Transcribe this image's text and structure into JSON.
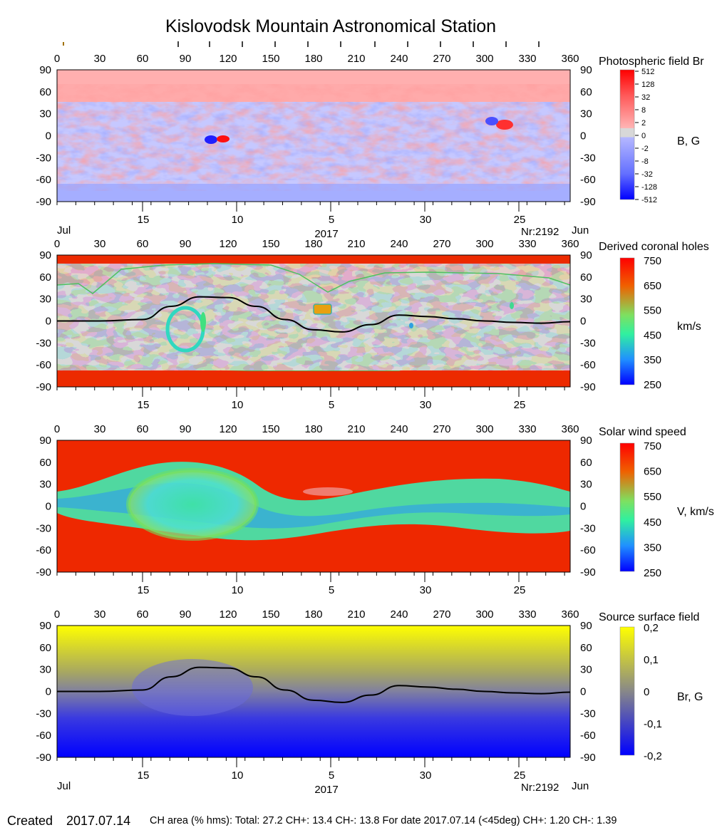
{
  "title": "Kislovodsk Mountain Astronomical Station",
  "footer": {
    "created_label": "Created",
    "created_date": "2017.07.14",
    "info": "CH area (% hms): Total: 27.2 CH+: 13.4    CH-: 13.8     For date 2017.07.14 (<45deg) CH+: 1.20     CH-: 1.39"
  },
  "colors": {
    "positive_field": "#ff6666",
    "negative_field": "#7a86ff",
    "coronal_hole_gray_dark": "#808080",
    "coronal_hole_gray_light": "#c0c0c0",
    "fast_wind": "#ee2200",
    "slow_wind": "#40e890",
    "source_positive": "#ffff00",
    "source_negative": "#0000ff",
    "neutral_line": "#000000"
  },
  "chart_data": [
    {
      "type": "heatmap",
      "title": "Photospheric field Br",
      "colorbar_label": "B, G",
      "colorbar_ticks": [
        "512",
        "128",
        "32",
        "8",
        "2",
        "0",
        "-2",
        "-8",
        "-32",
        "-128",
        "-512"
      ],
      "xlim": [
        0,
        360
      ],
      "ylim": [
        -90,
        90
      ],
      "x_ticks": [
        "0",
        "30",
        "60",
        "90",
        "120",
        "150",
        "180",
        "210",
        "240",
        "270",
        "300",
        "330",
        "360"
      ],
      "y_ticks": [
        "90",
        "60",
        "30",
        "0",
        "-30",
        "-60",
        "-90"
      ],
      "date_ticks": [
        {
          "label": "15",
          "x": 60
        },
        {
          "label": "10",
          "x": 126
        },
        {
          "label": "5",
          "x": 192
        },
        {
          "label": "30",
          "x": 258
        },
        {
          "label": "25",
          "x": 324
        }
      ],
      "month_left": "Jul",
      "month_right": "Jun",
      "year": "2017",
      "rotation": "Nr:2192",
      "top_marks": true
    },
    {
      "type": "heatmap",
      "title": "Derived coronal holes",
      "colorbar_label": "km/s",
      "colorbar_ticks": [
        "750",
        "650",
        "550",
        "450",
        "350",
        "250"
      ],
      "xlim": [
        0,
        360
      ],
      "ylim": [
        -90,
        90
      ],
      "x_ticks": [
        "0",
        "30",
        "60",
        "90",
        "120",
        "150",
        "180",
        "210",
        "240",
        "270",
        "300",
        "330",
        "360"
      ],
      "y_ticks": [
        "90",
        "60",
        "30",
        "0",
        "-30",
        "-60",
        "-90"
      ],
      "date_ticks": [
        {
          "label": "15",
          "x": 60
        },
        {
          "label": "10",
          "x": 126
        },
        {
          "label": "5",
          "x": 192
        },
        {
          "label": "30",
          "x": 258
        },
        {
          "label": "25",
          "x": 324
        }
      ],
      "neutral_line": [
        [
          0,
          0
        ],
        [
          30,
          0
        ],
        [
          60,
          2
        ],
        [
          80,
          20
        ],
        [
          100,
          33
        ],
        [
          120,
          32
        ],
        [
          140,
          20
        ],
        [
          160,
          2
        ],
        [
          180,
          -12
        ],
        [
          200,
          -15
        ],
        [
          220,
          -5
        ],
        [
          240,
          8
        ],
        [
          260,
          6
        ],
        [
          280,
          3
        ],
        [
          300,
          0
        ],
        [
          320,
          -2
        ],
        [
          340,
          -3
        ],
        [
          360,
          -1
        ]
      ],
      "month_left": "",
      "month_right": "",
      "year": "",
      "rotation": ""
    },
    {
      "type": "heatmap",
      "title": "Solar wind speed",
      "colorbar_label": "V, km/s",
      "colorbar_ticks": [
        "750",
        "650",
        "550",
        "450",
        "350",
        "250"
      ],
      "xlim": [
        0,
        360
      ],
      "ylim": [
        -90,
        90
      ],
      "x_ticks": [
        "0",
        "30",
        "60",
        "90",
        "120",
        "150",
        "180",
        "210",
        "240",
        "270",
        "300",
        "330",
        "360"
      ],
      "y_ticks": [
        "90",
        "60",
        "30",
        "0",
        "-30",
        "-60",
        "-90"
      ],
      "date_ticks": [
        {
          "label": "15",
          "x": 60
        },
        {
          "label": "10",
          "x": 126
        },
        {
          "label": "5",
          "x": 192
        },
        {
          "label": "30",
          "x": 258
        },
        {
          "label": "25",
          "x": 324
        }
      ],
      "month_left": "",
      "month_right": "",
      "year": "",
      "rotation": ""
    },
    {
      "type": "heatmap",
      "title": "Source surface field",
      "colorbar_label": "Br, G",
      "colorbar_ticks": [
        "0,2",
        "0,1",
        "0",
        "-0,1",
        "-0,2"
      ],
      "xlim": [
        0,
        360
      ],
      "ylim": [
        -90,
        90
      ],
      "x_ticks": [
        "0",
        "30",
        "60",
        "90",
        "120",
        "150",
        "180",
        "210",
        "240",
        "270",
        "300",
        "330",
        "360"
      ],
      "y_ticks": [
        "90",
        "60",
        "30",
        "0",
        "-30",
        "-60",
        "-90"
      ],
      "date_ticks": [
        {
          "label": "15",
          "x": 60
        },
        {
          "label": "10",
          "x": 126
        },
        {
          "label": "5",
          "x": 192
        },
        {
          "label": "30",
          "x": 258
        },
        {
          "label": "25",
          "x": 324
        }
      ],
      "neutral_line": [
        [
          0,
          0
        ],
        [
          30,
          0
        ],
        [
          60,
          2
        ],
        [
          80,
          20
        ],
        [
          100,
          33
        ],
        [
          120,
          32
        ],
        [
          140,
          20
        ],
        [
          160,
          2
        ],
        [
          180,
          -12
        ],
        [
          200,
          -15
        ],
        [
          220,
          -5
        ],
        [
          240,
          8
        ],
        [
          260,
          6
        ],
        [
          280,
          3
        ],
        [
          300,
          0
        ],
        [
          320,
          -2
        ],
        [
          340,
          -3
        ],
        [
          360,
          -1
        ]
      ],
      "month_left": "Jul",
      "month_right": "Jun",
      "year": "2017",
      "rotation": "Nr:2192"
    }
  ]
}
